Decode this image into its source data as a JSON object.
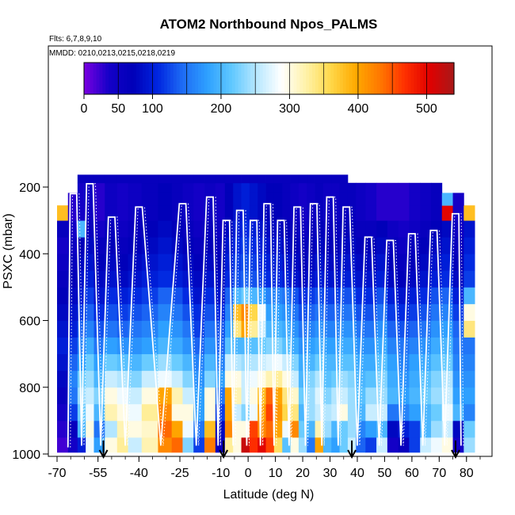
{
  "chart_data": {
    "type": "heatmap",
    "title": "ATOM2 Northbound Npos_PALMS",
    "subtitle_flights": "Flts: 6,7,8,9,10",
    "subtitle_dates": "MMDD: 0210,0213,0215,0218,0219",
    "xlabel": "Latitude (deg N)",
    "ylabel": "PSXC (mbar)",
    "xlim": [
      -70,
      85
    ],
    "ylim": [
      1000,
      150
    ],
    "x_tick_labels": [
      "-70",
      "-55",
      "-40",
      "-25",
      "-10",
      "0",
      "10",
      "20",
      "30",
      "40",
      "50",
      "60",
      "70",
      "80"
    ],
    "x_tick_values": [
      -70,
      -55,
      -40,
      -25,
      -10,
      0,
      10,
      20,
      30,
      40,
      50,
      60,
      70,
      80
    ],
    "y_tick_labels": [
      "200",
      "400",
      "600",
      "800",
      "1000"
    ],
    "y_tick_values": [
      200,
      400,
      600,
      800,
      1000
    ],
    "colorbar": {
      "min": 0,
      "max": 540,
      "tick_labels": [
        "0",
        "50",
        "100",
        "200",
        "300",
        "400",
        "500"
      ],
      "tick_values": [
        0,
        50,
        100,
        200,
        300,
        400,
        500
      ],
      "colors": [
        "#7b00e0",
        "#1500c8",
        "#0000b8",
        "#0026e0",
        "#1e6cf5",
        "#2ea0ff",
        "#60c8ff",
        "#b8e8ff",
        "#ffffff",
        "#fff2a8",
        "#ffd84a",
        "#ffaa00",
        "#ff7800",
        "#ff3000",
        "#e00000",
        "#a81818"
      ]
    },
    "lat_bins": [
      -68,
      -64,
      -61,
      -58,
      -55,
      -50,
      -46,
      -42,
      -36,
      -30,
      -26,
      -22,
      -18,
      -14,
      -10,
      -7,
      -4,
      -1,
      2,
      5,
      8,
      11,
      14,
      17,
      20,
      23,
      26,
      29,
      32,
      35,
      38,
      41,
      45,
      49,
      53,
      57,
      61,
      65,
      69,
      73,
      77,
      81
    ],
    "pressure_bins": [
      975,
      925,
      875,
      825,
      775,
      725,
      675,
      625,
      575,
      525,
      475,
      425,
      375,
      325,
      275,
      235,
      200,
      175
    ],
    "values_note": "Npos concentration (colorbar units), rows = pressure_bins (surface to top), columns = lat_bins",
    "values": [
      [
        20,
        40,
        100,
        280,
        180,
        300,
        330,
        260,
        320,
        420,
        440,
        230,
        120,
        430,
        60,
        330,
        300,
        520,
        470,
        500,
        460,
        350,
        210,
        300,
        240,
        150,
        400,
        200,
        180,
        220,
        260,
        140,
        120,
        260,
        40,
        60,
        120,
        260,
        280,
        300,
        40,
        240
      ],
      [
        30,
        60,
        200,
        300,
        150,
        250,
        320,
        300,
        310,
        440,
        400,
        280,
        150,
        380,
        80,
        420,
        300,
        300,
        460,
        420,
        440,
        400,
        280,
        420,
        220,
        200,
        320,
        240,
        200,
        220,
        240,
        160,
        180,
        200,
        80,
        100,
        120,
        200,
        240,
        260,
        80,
        220
      ],
      [
        40,
        120,
        220,
        280,
        200,
        320,
        300,
        280,
        330,
        420,
        300,
        300,
        180,
        300,
        120,
        400,
        260,
        230,
        280,
        400,
        460,
        410,
        360,
        340,
        200,
        240,
        260,
        250,
        260,
        300,
        240,
        200,
        260,
        260,
        150,
        160,
        180,
        200,
        220,
        280,
        200,
        160
      ],
      [
        60,
        150,
        240,
        260,
        230,
        300,
        280,
        260,
        300,
        400,
        320,
        260,
        180,
        300,
        150,
        400,
        320,
        260,
        300,
        380,
        440,
        400,
        340,
        310,
        220,
        240,
        270,
        230,
        250,
        260,
        240,
        210,
        240,
        240,
        200,
        180,
        200,
        220,
        240,
        260,
        180,
        180
      ],
      [
        80,
        160,
        220,
        240,
        200,
        260,
        250,
        230,
        260,
        280,
        260,
        230,
        170,
        230,
        180,
        300,
        300,
        260,
        280,
        300,
        320,
        330,
        300,
        260,
        200,
        230,
        250,
        210,
        220,
        240,
        230,
        200,
        210,
        230,
        190,
        170,
        190,
        210,
        230,
        250,
        170,
        170
      ],
      [
        90,
        140,
        180,
        220,
        180,
        220,
        210,
        200,
        220,
        240,
        220,
        200,
        160,
        200,
        160,
        260,
        250,
        240,
        250,
        260,
        270,
        280,
        260,
        230,
        190,
        200,
        220,
        200,
        200,
        210,
        210,
        190,
        190,
        210,
        180,
        160,
        180,
        190,
        210,
        220,
        160,
        160
      ],
      [
        100,
        120,
        160,
        190,
        150,
        180,
        170,
        170,
        180,
        200,
        190,
        170,
        140,
        170,
        140,
        210,
        200,
        200,
        210,
        220,
        230,
        230,
        210,
        190,
        170,
        180,
        190,
        180,
        180,
        190,
        190,
        170,
        170,
        190,
        160,
        150,
        160,
        170,
        190,
        200,
        150,
        150
      ],
      [
        90,
        100,
        140,
        160,
        130,
        150,
        140,
        150,
        160,
        180,
        170,
        150,
        120,
        150,
        130,
        180,
        340,
        400,
        330,
        260,
        200,
        200,
        190,
        170,
        150,
        160,
        170,
        160,
        160,
        170,
        170,
        150,
        150,
        170,
        140,
        130,
        140,
        150,
        170,
        180,
        140,
        340
      ],
      [
        80,
        90,
        120,
        140,
        110,
        130,
        120,
        130,
        140,
        160,
        150,
        130,
        110,
        130,
        110,
        160,
        380,
        420,
        360,
        280,
        180,
        180,
        170,
        150,
        130,
        140,
        150,
        140,
        140,
        150,
        150,
        130,
        130,
        150,
        120,
        110,
        120,
        130,
        150,
        160,
        120,
        300
      ],
      [
        70,
        80,
        100,
        120,
        90,
        110,
        100,
        110,
        120,
        140,
        130,
        110,
        90,
        110,
        90,
        140,
        200,
        220,
        200,
        180,
        160,
        160,
        150,
        130,
        110,
        120,
        130,
        120,
        120,
        130,
        130,
        110,
        110,
        130,
        100,
        90,
        100,
        110,
        130,
        140,
        100,
        200
      ],
      [
        60,
        70,
        90,
        100,
        80,
        90,
        80,
        90,
        100,
        110,
        100,
        90,
        80,
        90,
        80,
        110,
        130,
        140,
        130,
        120,
        110,
        110,
        100,
        90,
        80,
        90,
        100,
        90,
        90,
        100,
        100,
        90,
        90,
        100,
        80,
        70,
        80,
        90,
        100,
        110,
        80,
        120
      ],
      [
        50,
        60,
        80,
        90,
        70,
        80,
        70,
        80,
        90,
        100,
        90,
        80,
        70,
        80,
        70,
        100,
        120,
        130,
        120,
        110,
        100,
        100,
        90,
        80,
        70,
        80,
        90,
        80,
        80,
        90,
        90,
        80,
        80,
        90,
        70,
        60,
        70,
        80,
        90,
        100,
        70,
        110
      ],
      [
        40,
        50,
        70,
        80,
        60,
        70,
        60,
        70,
        80,
        90,
        80,
        70,
        60,
        70,
        60,
        90,
        110,
        120,
        110,
        100,
        90,
        90,
        80,
        70,
        60,
        70,
        80,
        70,
        70,
        80,
        80,
        70,
        70,
        80,
        60,
        50,
        60,
        70,
        80,
        90,
        60,
        100
      ],
      [
        60,
        40,
        200,
        60,
        40,
        60,
        50,
        60,
        70,
        80,
        70,
        60,
        50,
        60,
        50,
        80,
        100,
        110,
        100,
        90,
        80,
        80,
        70,
        60,
        50,
        60,
        70,
        60,
        60,
        70,
        70,
        60,
        60,
        70,
        50,
        40,
        50,
        60,
        70,
        80,
        50,
        90
      ],
      [
        380,
        30,
        40,
        50,
        30,
        50,
        40,
        50,
        60,
        70,
        60,
        50,
        40,
        50,
        40,
        70,
        90,
        100,
        90,
        80,
        70,
        70,
        60,
        50,
        40,
        50,
        60,
        50,
        50,
        60,
        60,
        50,
        40,
        30,
        30,
        30,
        40,
        50,
        60,
        500,
        40,
        380
      ],
      [
        null,
        30,
        40,
        50,
        30,
        50,
        40,
        50,
        60,
        70,
        60,
        50,
        40,
        50,
        40,
        70,
        90,
        100,
        90,
        80,
        70,
        70,
        60,
        50,
        40,
        50,
        60,
        50,
        50,
        60,
        60,
        50,
        40,
        30,
        30,
        30,
        40,
        50,
        60,
        200,
        40,
        null
      ],
      [
        null,
        null,
        40,
        50,
        30,
        50,
        40,
        50,
        60,
        70,
        60,
        50,
        40,
        50,
        40,
        70,
        90,
        100,
        90,
        80,
        70,
        70,
        60,
        50,
        40,
        50,
        60,
        50,
        50,
        60,
        60,
        50,
        40,
        30,
        30,
        30,
        40,
        50,
        60,
        null,
        null,
        null
      ],
      [
        null,
        null,
        60,
        60,
        60,
        60,
        60,
        60,
        60,
        60,
        60,
        60,
        60,
        60,
        60,
        60,
        60,
        60,
        60,
        60,
        60,
        60,
        60,
        60,
        60,
        60,
        60,
        60,
        60,
        60,
        null,
        null,
        null,
        null,
        null,
        null,
        null,
        null,
        null,
        null,
        null,
        null
      ]
    ],
    "flight_track_peaks_lat": [
      -64,
      -58,
      -50,
      -40,
      -24,
      -14,
      -8,
      -3,
      2,
      7,
      12,
      18,
      24,
      30,
      36,
      44,
      52,
      60,
      68,
      76
    ],
    "flight_track_peaks_p": [
      220,
      190,
      290,
      260,
      250,
      230,
      300,
      270,
      300,
      250,
      300,
      260,
      250,
      230,
      260,
      350,
      360,
      340,
      330,
      280
    ],
    "arrows_lat": [
      -53,
      -9,
      38,
      76
    ]
  }
}
